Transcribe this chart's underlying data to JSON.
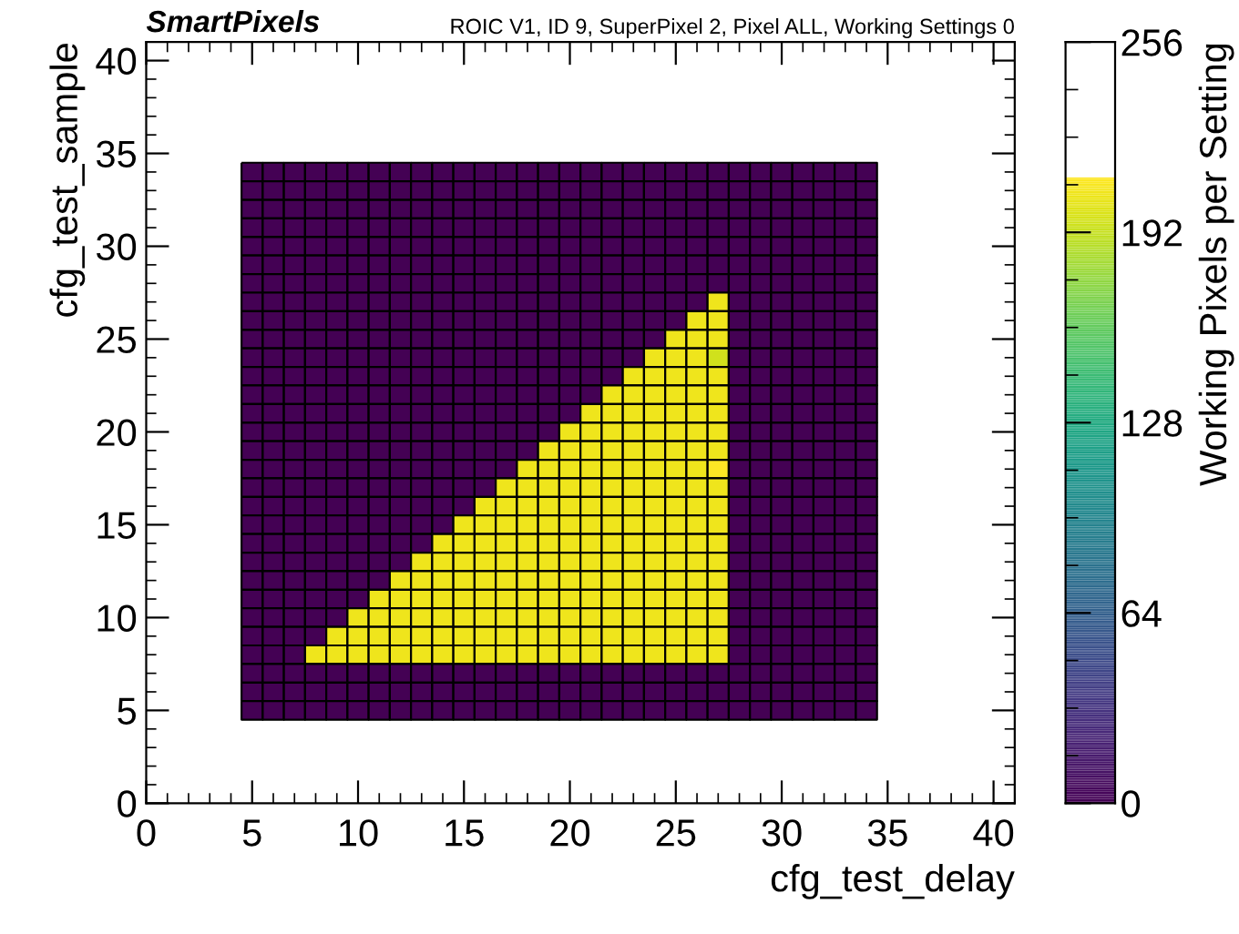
{
  "chart_data": {
    "type": "heatmap",
    "title": "SmartPixels",
    "subtitle": "ROIC V1, ID 9, SuperPixel 2, Pixel ALL, Working Settings 0",
    "xlabel": "cfg_test_delay",
    "ylabel": "cfg_test_sample",
    "clabel": "Working Pixels per Setting",
    "x": [
      5,
      6,
      7,
      8,
      9,
      10,
      11,
      12,
      13,
      14,
      15,
      16,
      17,
      18,
      19,
      20,
      21,
      22,
      23,
      24,
      25,
      26,
      27,
      28,
      29,
      30,
      31,
      32,
      33,
      34
    ],
    "y": [
      34,
      33,
      32,
      31,
      30,
      29,
      28,
      27,
      26,
      25,
      24,
      23,
      22,
      21,
      20,
      19,
      18,
      17,
      16,
      15,
      14,
      13,
      12,
      11,
      10,
      9,
      8,
      7,
      6,
      5
    ],
    "cells": [
      [
        0,
        0,
        0,
        0,
        0,
        0,
        0,
        0,
        0,
        0,
        0,
        0,
        0,
        0,
        0,
        0,
        0,
        0,
        0,
        0,
        0,
        0,
        0,
        0,
        0,
        0,
        0,
        0,
        0,
        0
      ],
      [
        0,
        0,
        0,
        0,
        0,
        0,
        0,
        0,
        0,
        0,
        0,
        0,
        0,
        0,
        0,
        0,
        0,
        0,
        0,
        0,
        0,
        0,
        0,
        0,
        0,
        0,
        0,
        0,
        0,
        0
      ],
      [
        0,
        0,
        0,
        0,
        0,
        0,
        0,
        0,
        0,
        0,
        0,
        0,
        0,
        0,
        0,
        0,
        0,
        0,
        0,
        0,
        0,
        0,
        0,
        0,
        0,
        0,
        0,
        0,
        0,
        0
      ],
      [
        0,
        0,
        0,
        0,
        0,
        0,
        0,
        0,
        0,
        0,
        0,
        0,
        0,
        0,
        0,
        0,
        0,
        0,
        0,
        0,
        0,
        0,
        0,
        0,
        0,
        0,
        0,
        0,
        0,
        0
      ],
      [
        0,
        0,
        0,
        0,
        0,
        0,
        0,
        0,
        0,
        0,
        0,
        0,
        0,
        0,
        0,
        0,
        0,
        0,
        0,
        0,
        0,
        0,
        0,
        0,
        0,
        0,
        0,
        0,
        0,
        0
      ],
      [
        0,
        0,
        0,
        0,
        0,
        0,
        0,
        0,
        0,
        0,
        0,
        0,
        0,
        0,
        0,
        0,
        0,
        0,
        0,
        0,
        0,
        0,
        0,
        0,
        0,
        0,
        0,
        0,
        0,
        0
      ],
      [
        0,
        0,
        0,
        0,
        0,
        0,
        0,
        0,
        0,
        0,
        0,
        0,
        0,
        0,
        0,
        0,
        0,
        0,
        0,
        0,
        0,
        0,
        0,
        0,
        0,
        0,
        0,
        0,
        0,
        0
      ],
      [
        0,
        0,
        0,
        0,
        0,
        0,
        0,
        0,
        0,
        0,
        0,
        0,
        0,
        0,
        0,
        0,
        0,
        0,
        0,
        0,
        0,
        0,
        205,
        0,
        0,
        0,
        0,
        0,
        0,
        0
      ],
      [
        0,
        0,
        0,
        0,
        0,
        0,
        0,
        0,
        0,
        0,
        0,
        0,
        0,
        0,
        0,
        0,
        0,
        0,
        0,
        0,
        0,
        205,
        205,
        0,
        0,
        0,
        0,
        0,
        0,
        0
      ],
      [
        0,
        0,
        0,
        0,
        0,
        0,
        0,
        0,
        0,
        0,
        0,
        0,
        0,
        0,
        0,
        0,
        0,
        0,
        0,
        0,
        205,
        205,
        205,
        0,
        0,
        0,
        0,
        0,
        0,
        0
      ],
      [
        0,
        0,
        0,
        0,
        0,
        0,
        0,
        0,
        0,
        0,
        0,
        0,
        0,
        0,
        0,
        0,
        0,
        0,
        0,
        205,
        205,
        205,
        195,
        0,
        0,
        0,
        0,
        0,
        0,
        0
      ],
      [
        0,
        0,
        0,
        0,
        0,
        0,
        0,
        0,
        0,
        0,
        0,
        0,
        0,
        0,
        0,
        0,
        0,
        0,
        205,
        205,
        205,
        205,
        205,
        0,
        0,
        0,
        0,
        0,
        0,
        0
      ],
      [
        0,
        0,
        0,
        0,
        0,
        0,
        0,
        0,
        0,
        0,
        0,
        0,
        0,
        0,
        0,
        0,
        0,
        205,
        205,
        205,
        205,
        205,
        205,
        0,
        0,
        0,
        0,
        0,
        0,
        0
      ],
      [
        0,
        0,
        0,
        0,
        0,
        0,
        0,
        0,
        0,
        0,
        0,
        0,
        0,
        0,
        0,
        0,
        205,
        205,
        205,
        205,
        205,
        205,
        205,
        0,
        0,
        0,
        0,
        0,
        0,
        0
      ],
      [
        0,
        0,
        0,
        0,
        0,
        0,
        0,
        0,
        0,
        0,
        0,
        0,
        0,
        0,
        0,
        205,
        205,
        205,
        205,
        205,
        205,
        205,
        205,
        0,
        0,
        0,
        0,
        0,
        0,
        0
      ],
      [
        0,
        0,
        0,
        0,
        0,
        0,
        0,
        0,
        0,
        0,
        0,
        0,
        0,
        0,
        205,
        205,
        205,
        205,
        205,
        205,
        205,
        205,
        205,
        0,
        0,
        0,
        0,
        0,
        0,
        0
      ],
      [
        0,
        0,
        0,
        0,
        0,
        0,
        0,
        0,
        0,
        0,
        0,
        0,
        0,
        205,
        205,
        205,
        205,
        205,
        205,
        205,
        205,
        205,
        210,
        0,
        0,
        0,
        0,
        0,
        0,
        0
      ],
      [
        0,
        0,
        0,
        0,
        0,
        0,
        0,
        0,
        0,
        0,
        0,
        0,
        205,
        205,
        205,
        205,
        205,
        205,
        205,
        205,
        205,
        205,
        205,
        0,
        0,
        0,
        0,
        0,
        0,
        0
      ],
      [
        0,
        0,
        0,
        0,
        0,
        0,
        0,
        0,
        0,
        0,
        0,
        205,
        205,
        205,
        205,
        205,
        205,
        205,
        205,
        205,
        205,
        205,
        205,
        0,
        0,
        0,
        0,
        0,
        0,
        0
      ],
      [
        0,
        0,
        0,
        0,
        0,
        0,
        0,
        0,
        0,
        0,
        205,
        205,
        205,
        205,
        205,
        205,
        205,
        205,
        205,
        205,
        205,
        205,
        205,
        0,
        0,
        0,
        0,
        0,
        0,
        0
      ],
      [
        0,
        0,
        0,
        0,
        0,
        0,
        0,
        0,
        0,
        205,
        205,
        205,
        205,
        205,
        205,
        205,
        205,
        205,
        205,
        205,
        205,
        205,
        205,
        0,
        0,
        0,
        0,
        0,
        0,
        0
      ],
      [
        0,
        0,
        0,
        0,
        0,
        0,
        0,
        0,
        205,
        205,
        205,
        205,
        205,
        205,
        205,
        205,
        205,
        205,
        205,
        205,
        205,
        205,
        205,
        0,
        0,
        0,
        0,
        0,
        0,
        0
      ],
      [
        0,
        0,
        0,
        0,
        0,
        0,
        0,
        205,
        205,
        205,
        205,
        205,
        205,
        205,
        205,
        205,
        205,
        205,
        205,
        205,
        205,
        205,
        205,
        0,
        0,
        0,
        0,
        0,
        0,
        0
      ],
      [
        0,
        0,
        0,
        0,
        0,
        0,
        205,
        205,
        205,
        205,
        205,
        205,
        205,
        205,
        205,
        205,
        205,
        205,
        205,
        205,
        205,
        205,
        205,
        0,
        0,
        0,
        0,
        0,
        0,
        0
      ],
      [
        0,
        0,
        0,
        0,
        0,
        205,
        205,
        205,
        205,
        205,
        205,
        205,
        205,
        205,
        205,
        205,
        205,
        205,
        205,
        205,
        205,
        205,
        205,
        0,
        0,
        0,
        0,
        0,
        0,
        0
      ],
      [
        0,
        0,
        0,
        0,
        205,
        205,
        205,
        205,
        205,
        205,
        205,
        205,
        205,
        205,
        205,
        205,
        205,
        205,
        205,
        205,
        205,
        205,
        205,
        0,
        0,
        0,
        0,
        0,
        0,
        0
      ],
      [
        0,
        0,
        0,
        205,
        205,
        205,
        205,
        205,
        205,
        205,
        205,
        205,
        205,
        205,
        205,
        205,
        205,
        205,
        205,
        205,
        205,
        205,
        205,
        0,
        0,
        0,
        0,
        0,
        0,
        0
      ],
      [
        0,
        0,
        0,
        0,
        0,
        0,
        0,
        0,
        0,
        0,
        0,
        0,
        0,
        0,
        0,
        0,
        0,
        0,
        0,
        0,
        0,
        0,
        0,
        0,
        0,
        0,
        0,
        0,
        0,
        0
      ],
      [
        0,
        0,
        0,
        0,
        0,
        0,
        0,
        0,
        0,
        0,
        0,
        0,
        0,
        0,
        0,
        0,
        0,
        0,
        0,
        0,
        0,
        0,
        0,
        0,
        0,
        0,
        0,
        0,
        0,
        0
      ],
      [
        0,
        0,
        0,
        0,
        0,
        0,
        0,
        0,
        0,
        0,
        0,
        0,
        0,
        0,
        0,
        0,
        0,
        0,
        0,
        0,
        0,
        0,
        0,
        0,
        0,
        0,
        0,
        0,
        0,
        0
      ]
    ],
    "clim": [
      0,
      256
    ],
    "cticks": [
      0,
      64,
      128,
      192,
      256
    ],
    "xlim": [
      0,
      41
    ],
    "xticks": [
      0,
      5,
      10,
      15,
      20,
      25,
      30,
      35,
      40
    ],
    "ylim": [
      0,
      41
    ],
    "yticks": [
      0,
      5,
      10,
      15,
      20,
      25,
      30,
      35,
      40
    ]
  }
}
